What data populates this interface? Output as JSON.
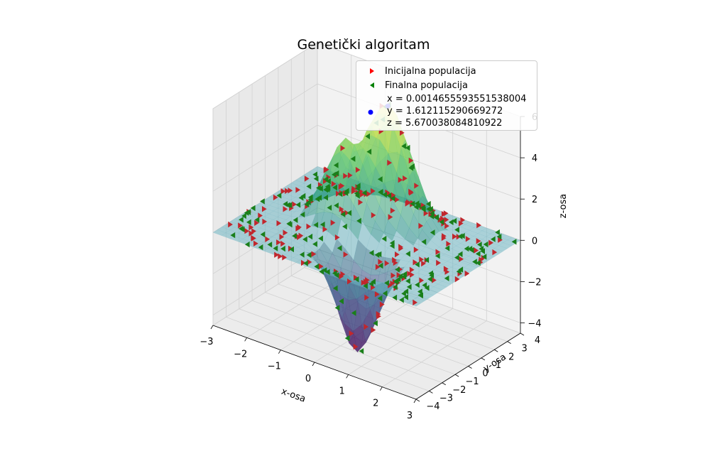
{
  "chart_data": {
    "type": "scatter",
    "title": "Genetički algoritam",
    "xlabel": "x-osa",
    "ylabel": "y-osa",
    "zlabel": "z-osa",
    "xlim": [
      -3,
      3
    ],
    "ylim": [
      -4,
      4
    ],
    "zlim": [
      -4.5,
      6
    ],
    "x_ticks": [
      "−3",
      "−2",
      "−1",
      "0",
      "1",
      "2",
      "3"
    ],
    "y_ticks": [
      "−4",
      "−3",
      "−2",
      "−1",
      "0",
      "1",
      "2",
      "3",
      "4"
    ],
    "z_ticks": [
      "−4",
      "−2",
      "0",
      "2",
      "4",
      "6"
    ],
    "grid": true,
    "legend_placement": "upper-right",
    "surface": "translucent 3D surface with a tall peak near (0, 1.6), a second peak near (-0.6, 1.5) and a deep trough near (0.5, -1.9)",
    "series": [
      {
        "name": "Inicijalna populacija",
        "marker": "right-triangle",
        "color": "#ff0000"
      },
      {
        "name": "Finalna populacija",
        "marker": "left-triangle",
        "color": "#008000"
      },
      {
        "name": "x = 0.0014655593551538004\ny = 1.612115290669272\nz = 5.670038084810922",
        "marker": "circle",
        "color": "#0000ff",
        "x": [
          0.0014655593551538004
        ],
        "y": [
          1.612115290669272
        ],
        "z": [
          5.670038084810922
        ]
      }
    ]
  },
  "colors": {
    "initial": "#ff0000",
    "final": "#008000",
    "best": "#0000ff",
    "pane": "#f2f2f2",
    "grid": "#d0d0d0"
  }
}
